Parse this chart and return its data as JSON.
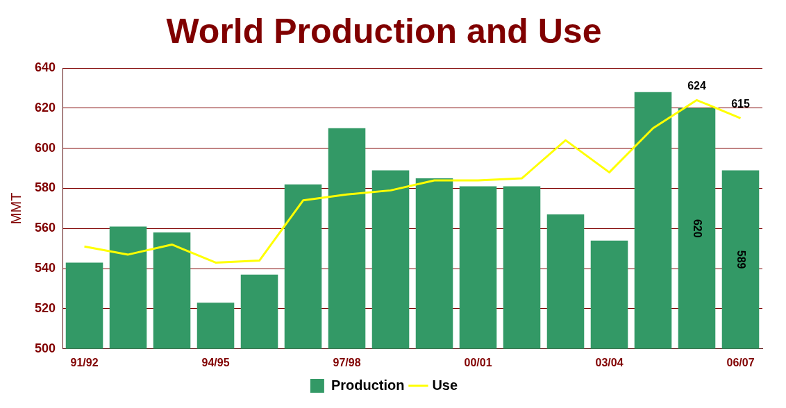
{
  "chart_data": {
    "type": "bar",
    "title": "World Production and Use",
    "ylabel": "MMT",
    "categories": [
      "91/92",
      null,
      null,
      "94/95",
      null,
      null,
      "97/98",
      null,
      null,
      "00/01",
      null,
      null,
      "03/04",
      null,
      null,
      "06/07"
    ],
    "series": [
      {
        "name": "Production",
        "color": "#339966",
        "values": [
          543,
          561,
          558,
          523,
          537,
          582,
          610,
          589,
          585,
          581,
          581,
          567,
          554,
          628,
          620,
          589
        ],
        "value_labels": [
          null,
          null,
          null,
          null,
          null,
          null,
          null,
          null,
          null,
          null,
          null,
          null,
          null,
          null,
          "620",
          "589"
        ]
      },
      {
        "name": "Use",
        "type": "line",
        "color": "#ffff00",
        "marker": "none",
        "line_style": "solid",
        "values": [
          551,
          547,
          552,
          543,
          544,
          574,
          577,
          579,
          584,
          584,
          585,
          604,
          588,
          610,
          624,
          615
        ],
        "value_labels": [
          null,
          null,
          null,
          null,
          null,
          null,
          null,
          null,
          null,
          null,
          null,
          null,
          null,
          null,
          "624",
          "615"
        ]
      }
    ],
    "ylim": [
      500,
      640
    ],
    "yticks": [
      500,
      520,
      540,
      560,
      580,
      600,
      620,
      640
    ],
    "grid": "y",
    "legend": "bottom"
  }
}
